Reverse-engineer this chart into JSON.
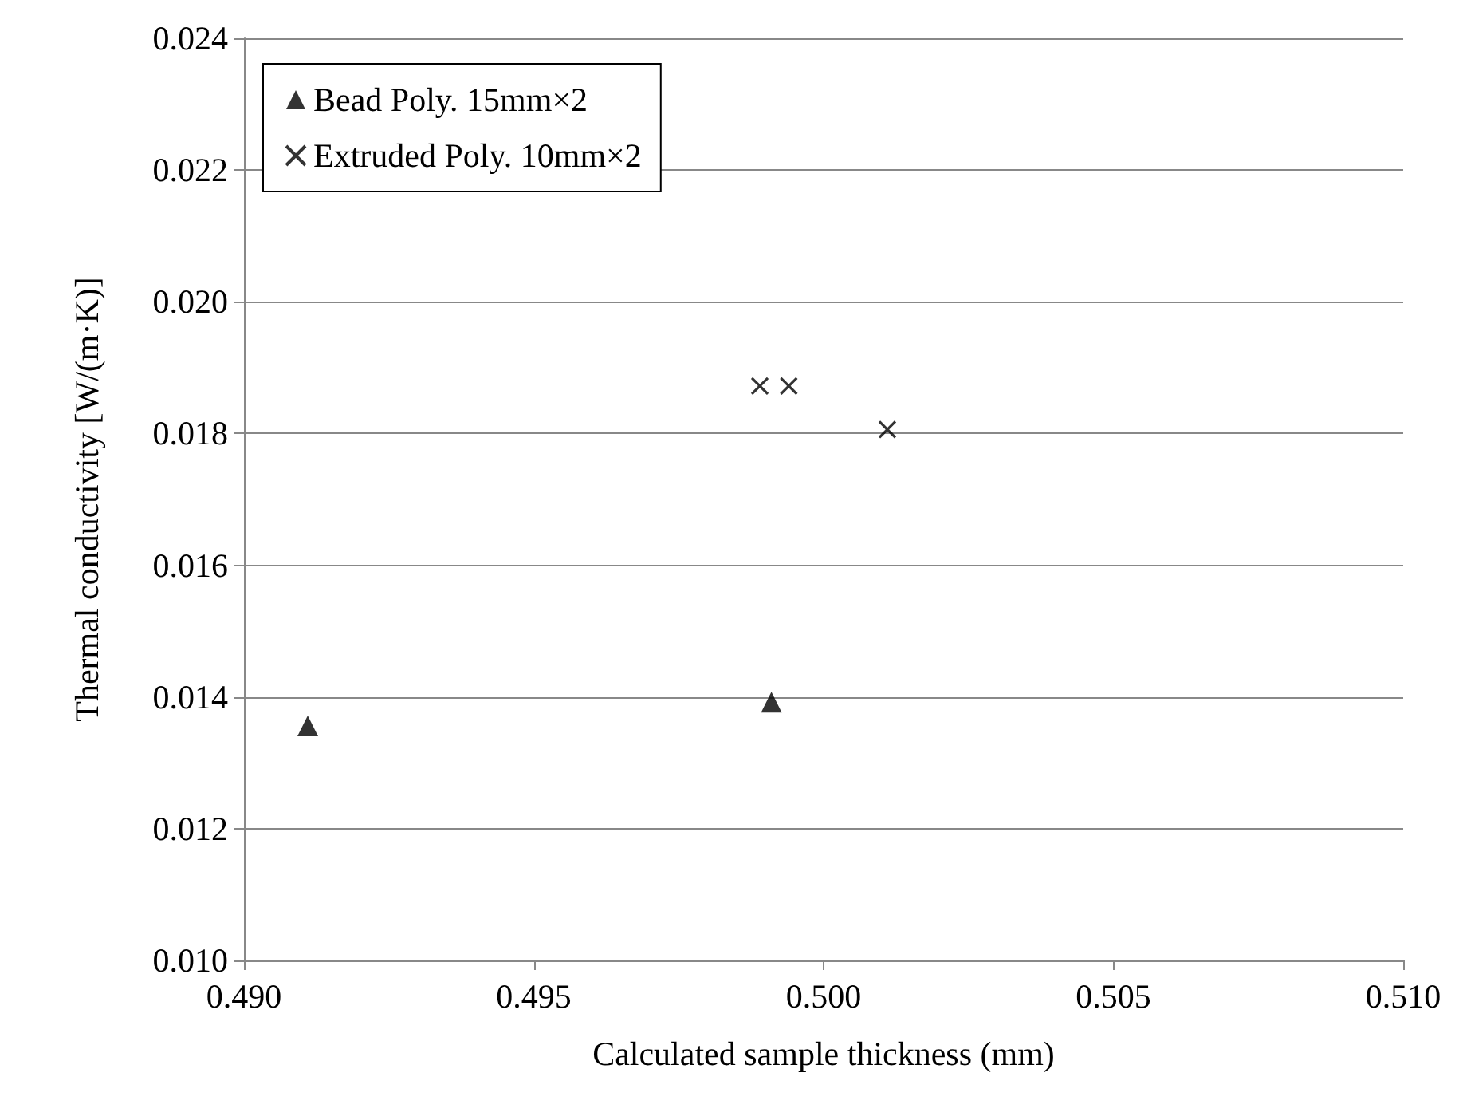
{
  "chart_data": {
    "type": "scatter",
    "xlabel": "Calculated sample thickness (mm)",
    "ylabel": "Thermal conductivity [W/(m·K)]",
    "xlim": [
      0.49,
      0.51
    ],
    "xticks": [
      {
        "value": 0.49,
        "label": "0.490"
      },
      {
        "value": 0.495,
        "label": "0.495"
      },
      {
        "value": 0.5,
        "label": "0.500"
      },
      {
        "value": 0.505,
        "label": "0.505"
      },
      {
        "value": 0.51,
        "label": "0.510"
      }
    ],
    "ylim": [
      0.01,
      0.024
    ],
    "yticks": [
      {
        "value": 0.01,
        "label": "0.010"
      },
      {
        "value": 0.012,
        "label": "0.012"
      },
      {
        "value": 0.014,
        "label": "0.014"
      },
      {
        "value": 0.016,
        "label": "0.016"
      },
      {
        "value": 0.018,
        "label": "0.018"
      },
      {
        "value": 0.02,
        "label": "0.020"
      },
      {
        "value": 0.022,
        "label": "0.022"
      },
      {
        "value": 0.024,
        "label": "0.024"
      }
    ],
    "grid": "y",
    "legend": "top left",
    "series": [
      {
        "name": "Bead Poly. 15mm×2",
        "color": "#000000",
        "marker": "triangle",
        "x": [
          0.4911,
          0.4991
        ],
        "values": [
          0.01356,
          0.01392
        ]
      },
      {
        "name": "Extruded Poly. 10mm×2",
        "color": "#000000",
        "marker": "cross",
        "x": [
          0.4989,
          0.4994,
          0.5011
        ],
        "values": [
          0.01872,
          0.01872,
          0.01806
        ]
      }
    ]
  }
}
